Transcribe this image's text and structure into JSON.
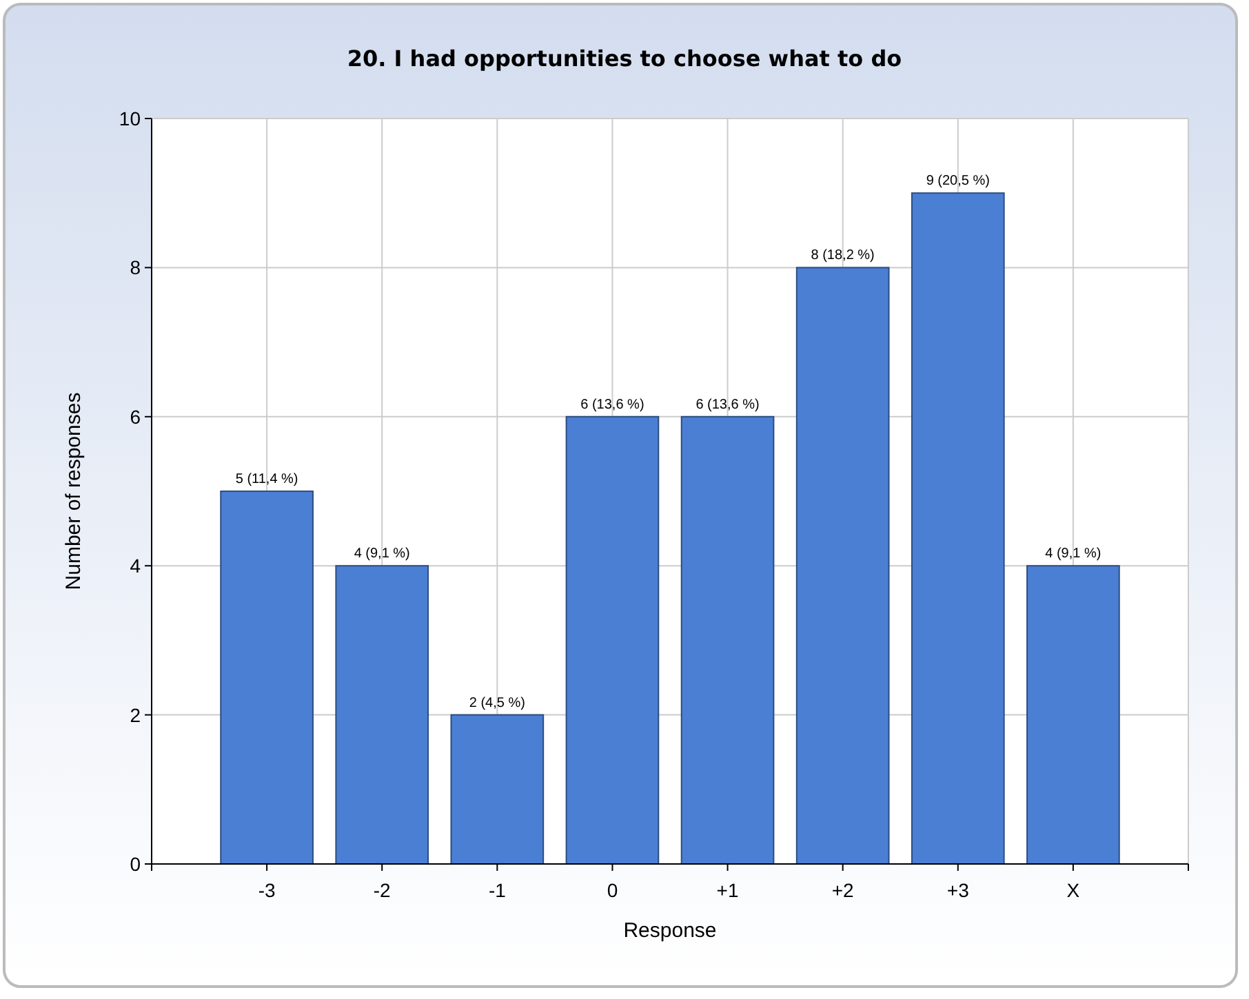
{
  "chart_data": {
    "type": "bar",
    "title": "20. I had opportunities to choose what to do",
    "xlabel": "Response",
    "ylabel": "Number of responses",
    "categories": [
      "-3",
      "-2",
      "-1",
      "0",
      "+1",
      "+2",
      "+3",
      "X"
    ],
    "values": [
      5,
      4,
      2,
      6,
      6,
      8,
      9,
      4
    ],
    "value_labels": [
      "5 (11,4 %)",
      "4 (9,1 %)",
      "2 (4,5 %)",
      "6 (13,6 %)",
      "6 (13,6 %)",
      "8 (18,2 %)",
      "9 (20,5 %)",
      "4 (9,1 %)"
    ],
    "color": "#4a7fd4",
    "ylim": [
      0,
      10
    ],
    "yticks": [
      0,
      2,
      4,
      6,
      8,
      10
    ],
    "grid": true
  }
}
